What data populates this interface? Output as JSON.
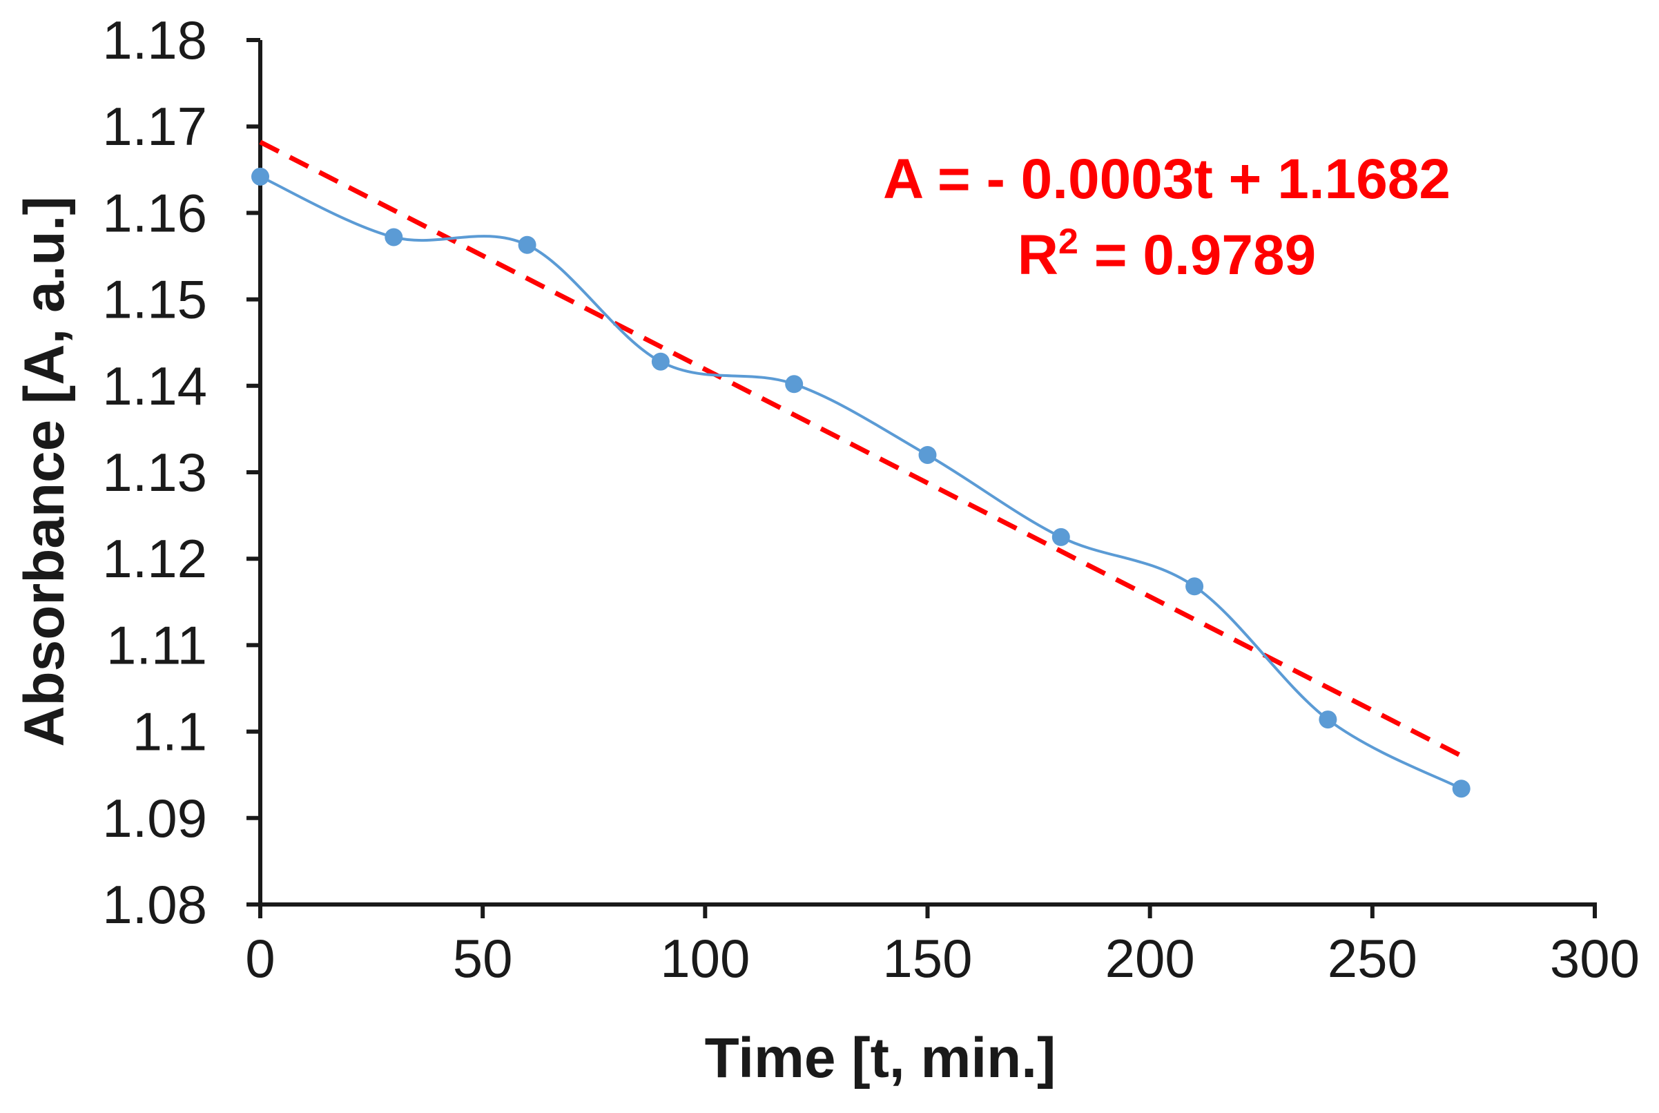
{
  "chart_data": {
    "type": "line",
    "title": "",
    "xlabel": "Time [t, min.]",
    "ylabel": "Absorbance [A, a.u.]",
    "xlim": [
      0,
      300
    ],
    "ylim": [
      1.08,
      1.18
    ],
    "x_ticks": [
      0,
      50,
      100,
      150,
      200,
      250,
      300
    ],
    "x_tick_labels": [
      "0",
      "50",
      "100",
      "150",
      "200",
      "250",
      "300"
    ],
    "y_ticks": [
      1.08,
      1.09,
      1.1,
      1.11,
      1.12,
      1.13,
      1.14,
      1.15,
      1.16,
      1.17,
      1.18
    ],
    "y_tick_labels": [
      "1.08",
      "1.09",
      "1.1",
      "1.11",
      "1.12",
      "1.13",
      "1.14",
      "1.15",
      "1.16",
      "1.17",
      "1.18"
    ],
    "grid": false,
    "series": [
      {
        "name": "Absorbance",
        "style": "smooth-line-markers",
        "color": "#5b9bd5",
        "x": [
          0,
          30,
          60,
          90,
          120,
          150,
          180,
          210,
          240,
          270
        ],
        "y": [
          1.1642,
          1.1572,
          1.1563,
          1.1428,
          1.1402,
          1.132,
          1.1225,
          1.1168,
          1.1014,
          1.0934
        ]
      },
      {
        "name": "Linear fit",
        "style": "dashed",
        "color": "#ff0000",
        "x": [
          0,
          270
        ],
        "y": [
          1.1682,
          1.0972
        ]
      }
    ],
    "annotations": {
      "equation": "A = - 0.0003t + 1.1682",
      "r2_prefix": "R",
      "r2_sup": "2",
      "r2_value": " = 0.9789",
      "color": "#ff0000"
    }
  }
}
